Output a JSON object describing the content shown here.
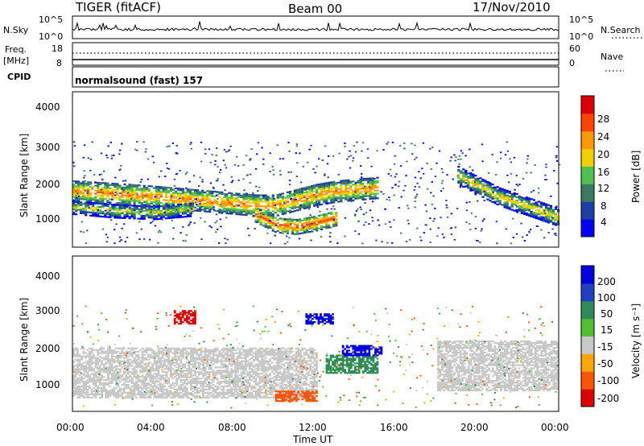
{
  "header": {
    "radar": "TIGER (fitACF)",
    "beam": "Beam 00",
    "date": "17/Nov/2010"
  },
  "nsky_panel": {
    "left_label": "N.Sky",
    "left_ticks": [
      "10^5",
      "10^0"
    ],
    "right_ticks": [
      "10^5",
      "10^0"
    ],
    "right_label": "N.Search"
  },
  "freq_panel": {
    "left_label_1": "Freq.",
    "left_label_2": "[MHz]",
    "left_ticks": [
      "18",
      "8"
    ],
    "right_ticks": [
      "60",
      "0"
    ],
    "right_label": "Nave"
  },
  "cpid_panel": {
    "left_label": "CPID",
    "program": "normalsound (fast) 157"
  },
  "x_axis": {
    "tick_labels": [
      "00:00",
      "04:00",
      "08:00",
      "12:00",
      "16:00",
      "20:00",
      "00:00"
    ],
    "label": "Time UT"
  },
  "power_panel": {
    "ylabel": "Slant Range [km]",
    "yticks": [
      "4000",
      "3000",
      "2000",
      "1000"
    ],
    "colorbar_label": "Power [dB]",
    "colorbar_ticks": [
      "28",
      "24",
      "20",
      "16",
      "12",
      "8",
      "4"
    ]
  },
  "velocity_panel": {
    "ylabel": "Slant Range [km]",
    "yticks": [
      "4000",
      "3000",
      "2000",
      "1000"
    ],
    "colorbar_label": "Velocity [m s⁻¹]",
    "colorbar_ticks": [
      "200",
      "100",
      "50",
      "15",
      "-15",
      "-50",
      "-100",
      "-200"
    ]
  },
  "colors": {
    "power_scale": [
      "#0000ff",
      "#1e3fa6",
      "#3a7a60",
      "#50c050",
      "#f0d000",
      "#ff9900",
      "#ff4400",
      "#e00000"
    ],
    "velocity_scale": [
      "#e00000",
      "#ff5500",
      "#ffa500",
      "#c8c8c8",
      "#50c030",
      "#2e8b57",
      "#2040c0",
      "#0000e0"
    ]
  },
  "chart_data": [
    {
      "type": "heatmap",
      "title": "Power",
      "xlabel": "Time UT",
      "ylabel": "Slant Range [km]",
      "xlim": [
        0,
        24
      ],
      "ylim": [
        180,
        4600
      ],
      "colorbar": {
        "label": "Power [dB]",
        "range": [
          0,
          32
        ],
        "ticks": [
          4,
          8,
          12,
          16,
          20,
          24,
          28
        ]
      },
      "bands": [
        {
          "t": [
            0,
            2,
            4,
            6,
            8,
            9,
            10,
            11,
            12,
            13,
            14,
            15
          ],
          "r": [
            1750,
            1680,
            1600,
            1500,
            1400,
            1350,
            1350,
            1500,
            1650,
            1750,
            1800,
            1850
          ],
          "width_km": 300,
          "power_db": 26
        },
        {
          "t": [
            9,
            10,
            11,
            12,
            13
          ],
          "r": [
            1100,
            800,
            750,
            850,
            1000
          ],
          "width_km": 220,
          "power_db": 28
        },
        {
          "t": [
            0,
            2,
            4,
            6
          ],
          "r": [
            1300,
            1200,
            1150,
            1250
          ],
          "width_km": 200,
          "power_db": 20
        },
        {
          "t": [
            19,
            20,
            21,
            22,
            23,
            24
          ],
          "r": [
            2200,
            1900,
            1600,
            1400,
            1200,
            1000
          ],
          "width_km": 250,
          "power_db": 22
        }
      ]
    },
    {
      "type": "heatmap",
      "title": "Velocity",
      "xlabel": "Time UT",
      "ylabel": "Slant Range [km]",
      "xlim": [
        0,
        24
      ],
      "ylim": [
        180,
        4600
      ],
      "colorbar": {
        "label": "Velocity [m s⁻¹]",
        "range": [
          -250,
          250
        ],
        "ticks": [
          -200,
          -100,
          -50,
          -15,
          15,
          50,
          100,
          200
        ]
      },
      "regions": [
        {
          "t0": 0,
          "t1": 12,
          "r0": 600,
          "r1": 2000,
          "velocity": 0
        },
        {
          "t0": 12.5,
          "t1": 15,
          "r0": 1300,
          "r1": 1800,
          "velocity": 60
        },
        {
          "t0": 13.3,
          "t1": 15.2,
          "r0": 1800,
          "r1": 2100,
          "velocity": 220
        },
        {
          "t0": 11.5,
          "t1": 12.8,
          "r0": 2700,
          "r1": 3000,
          "velocity": 210
        },
        {
          "t0": 10,
          "t1": 12,
          "r0": 500,
          "r1": 800,
          "velocity": -60
        },
        {
          "t0": 18,
          "t1": 24,
          "r0": 800,
          "r1": 2200,
          "velocity": 0
        },
        {
          "t0": 5,
          "t1": 6,
          "r0": 2700,
          "r1": 3100,
          "velocity": -180
        }
      ]
    }
  ]
}
